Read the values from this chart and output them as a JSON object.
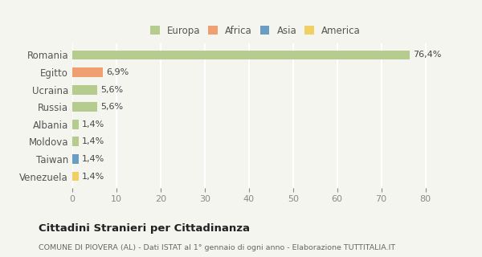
{
  "categories": [
    "Romania",
    "Egitto",
    "Ucraina",
    "Russia",
    "Albania",
    "Moldova",
    "Taiwan",
    "Venezuela"
  ],
  "values": [
    76.4,
    6.9,
    5.6,
    5.6,
    1.4,
    1.4,
    1.4,
    1.4
  ],
  "labels": [
    "76,4%",
    "6,9%",
    "5,6%",
    "5,6%",
    "1,4%",
    "1,4%",
    "1,4%",
    "1,4%"
  ],
  "colors": [
    "#b5cc8e",
    "#f0a070",
    "#b5cc8e",
    "#b5cc8e",
    "#b5cc8e",
    "#b5cc8e",
    "#6b9dc2",
    "#f0cf65"
  ],
  "legend_labels": [
    "Europa",
    "Africa",
    "Asia",
    "America"
  ],
  "legend_colors": [
    "#b5cc8e",
    "#f0a070",
    "#6b9dc2",
    "#f0cf65"
  ],
  "xlim": [
    0,
    83
  ],
  "xticks": [
    0,
    10,
    20,
    30,
    40,
    50,
    60,
    70,
    80
  ],
  "title": "Cittadini Stranieri per Cittadinanza",
  "subtitle": "COMUNE DI PIOVERA (AL) - Dati ISTAT al 1° gennaio di ogni anno - Elaborazione TUTTITALIA.IT",
  "bg_color": "#f5f5f0",
  "grid_color": "#ffffff",
  "bar_height": 0.55
}
